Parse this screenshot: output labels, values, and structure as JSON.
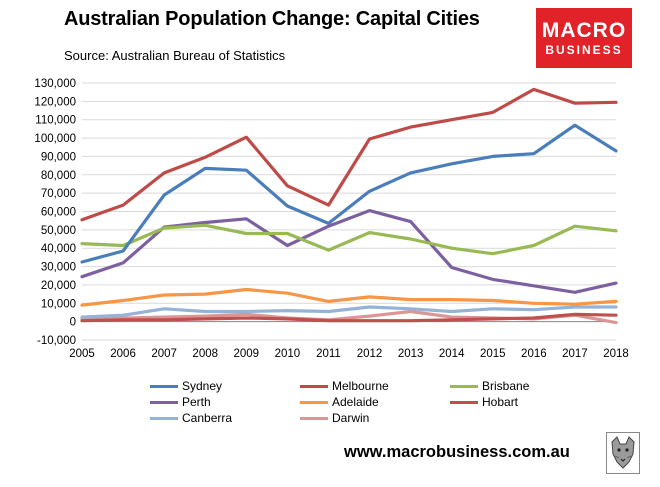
{
  "header": {
    "title": "Australian Population Change: Capital Cities",
    "subtitle": "Source: Australian Bureau of Statistics"
  },
  "logo": {
    "line1": "MACRO",
    "line2": "BUSINESS",
    "color": "#e12228"
  },
  "footer": {
    "url": "www.macrobusiness.com.au",
    "mascot_icon": "wolf-icon"
  },
  "chart_data": {
    "type": "line",
    "title": "Australian Population Change: Capital Cities",
    "x": [
      2005,
      2006,
      2007,
      2008,
      2009,
      2010,
      2011,
      2012,
      2013,
      2014,
      2015,
      2016,
      2017,
      2018
    ],
    "xlabel": "",
    "ylabel": "",
    "ylim": [
      -10000,
      130000
    ],
    "yticks": [
      -10000,
      0,
      10000,
      20000,
      30000,
      40000,
      50000,
      60000,
      70000,
      80000,
      90000,
      100000,
      110000,
      120000,
      130000
    ],
    "ytick_labels": [
      "-10,000",
      "0",
      "10,000",
      "20,000",
      "30,000",
      "40,000",
      "50,000",
      "60,000",
      "70,000",
      "80,000",
      "90,000",
      "100,000",
      "110,000",
      "120,000",
      "130,000"
    ],
    "xtick_labels": [
      "2005",
      "2006",
      "2007",
      "2008",
      "2009",
      "2010",
      "2011",
      "2012",
      "2013",
      "2014",
      "2015",
      "2016",
      "2017",
      "2018"
    ],
    "grid": true,
    "legend_position": "bottom",
    "series": [
      {
        "name": "Sydney",
        "color": "#4a7ebb",
        "values": [
          32500,
          38500,
          69000,
          83500,
          82500,
          63000,
          53500,
          71000,
          81000,
          86000,
          90000,
          91500,
          107000,
          93000
        ]
      },
      {
        "name": "Melbourne",
        "color": "#be4b48",
        "values": [
          55500,
          63500,
          81000,
          89500,
          100500,
          74000,
          63500,
          99500,
          106000,
          110000,
          114000,
          126500,
          119000,
          119500
        ]
      },
      {
        "name": "Brisbane",
        "color": "#98b954",
        "values": [
          42500,
          41500,
          51000,
          52500,
          48000,
          48000,
          39000,
          48500,
          45000,
          40000,
          37000,
          41500,
          52000,
          49500
        ]
      },
      {
        "name": "Perth",
        "color": "#7d60a0",
        "values": [
          24500,
          32000,
          51500,
          54000,
          56000,
          41500,
          52000,
          60500,
          54500,
          29500,
          23000,
          19500,
          16000,
          21000
        ]
      },
      {
        "name": "Adelaide",
        "color": "#f79646",
        "values": [
          9000,
          11500,
          14500,
          15000,
          17500,
          15500,
          11000,
          13500,
          12000,
          12000,
          11500,
          10000,
          9500,
          11000
        ]
      },
      {
        "name": "Hobart",
        "color": "#c0504d",
        "values": [
          500,
          1000,
          1000,
          1500,
          2000,
          1500,
          500,
          500,
          500,
          1000,
          1500,
          2000,
          4000,
          3500
        ]
      },
      {
        "name": "Canberra",
        "color": "#95b3d7",
        "values": [
          2500,
          3500,
          7000,
          5500,
          5500,
          6000,
          5500,
          8000,
          7000,
          5500,
          7000,
          6500,
          8000,
          8000
        ]
      },
      {
        "name": "Darwin",
        "color": "#d99694",
        "values": [
          1500,
          2000,
          2500,
          3000,
          4000,
          2000,
          1000,
          3000,
          5500,
          2500,
          2000,
          1500,
          3500,
          -500
        ]
      }
    ]
  }
}
